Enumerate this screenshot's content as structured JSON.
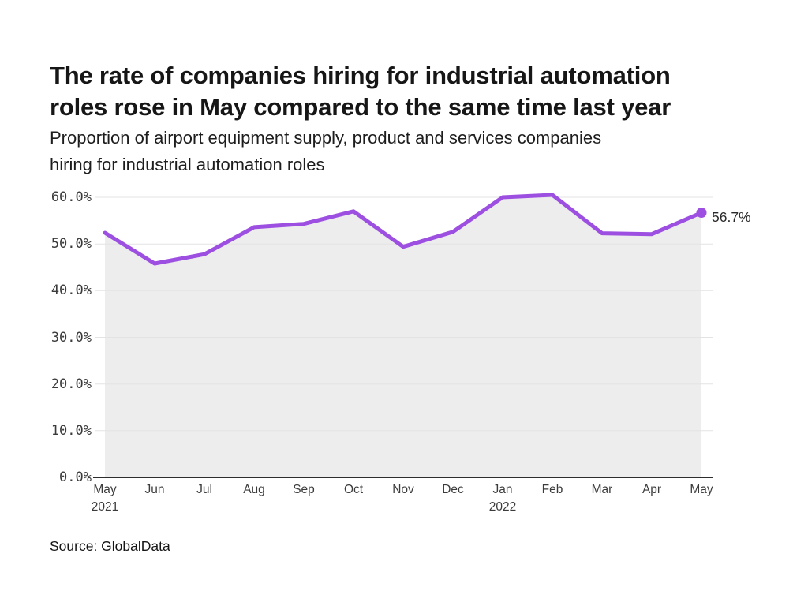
{
  "chart_data": {
    "type": "line",
    "title_lines": [
      "The rate of companies hiring for industrial automation",
      "roles rose in May compared to the same time last year"
    ],
    "subtitle_lines": [
      "Proportion of airport equipment supply, product and services companies",
      "hiring for industrial automation roles"
    ],
    "categories": [
      "May",
      "Jun",
      "Jul",
      "Aug",
      "Sep",
      "Oct",
      "Nov",
      "Dec",
      "Jan",
      "Feb",
      "Mar",
      "Apr",
      "May"
    ],
    "year_markers": [
      {
        "index": 0,
        "label": "2021"
      },
      {
        "index": 8,
        "label": "2022"
      }
    ],
    "series": [
      {
        "name": "Proportion of companies hiring for industrial automation roles",
        "values": [
          52.4,
          45.8,
          47.8,
          53.6,
          54.3,
          57.0,
          49.4,
          52.6,
          60.0,
          60.5,
          52.3,
          52.1,
          56.7
        ]
      }
    ],
    "end_label": "56.7%",
    "y_ticks": [
      "0.0%",
      "10.0%",
      "20.0%",
      "30.0%",
      "40.0%",
      "50.0%",
      "60.0%"
    ],
    "ylim": [
      0,
      60
    ],
    "grid": true,
    "legend": "none",
    "source": "Source: GlobalData",
    "colors": {
      "line": "#9C4FE0",
      "dot": "#9C4FE0",
      "area_fill": "#EDEDED",
      "gridline": "#E3E3E3",
      "axis": "#2D2D2D",
      "title_text": "#161616",
      "tick_text": "#3B3B3B"
    }
  }
}
